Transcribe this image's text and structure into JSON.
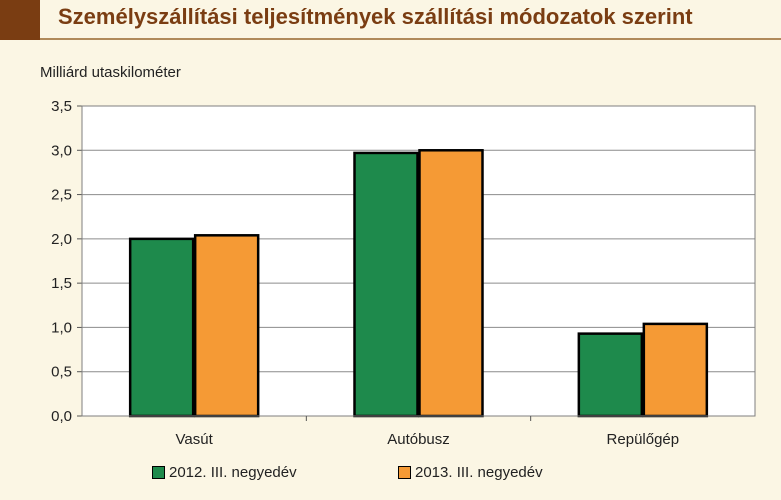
{
  "title": "Személyszállítási teljesítmények szállítási módozatok szerint",
  "chart_data": {
    "type": "bar",
    "ylabel": "Milliárd utaskilométer",
    "xlabel": "",
    "categories": [
      "Vasút",
      "Autóbusz",
      "Repülőgép"
    ],
    "series": [
      {
        "name": "2012. III. negyedév",
        "values": [
          2.0,
          2.97,
          0.93
        ],
        "color": "#1e8a4c"
      },
      {
        "name": "2013. III. negyedév",
        "values": [
          2.04,
          3.0,
          1.04
        ],
        "color": "#f59a35"
      }
    ],
    "ylim": [
      0,
      3.5
    ],
    "yticks": [
      "0,0",
      "0,5",
      "1,0",
      "1,5",
      "2,0",
      "2,5",
      "3,0",
      "3,5"
    ],
    "grid": true,
    "legend": "bottom"
  }
}
